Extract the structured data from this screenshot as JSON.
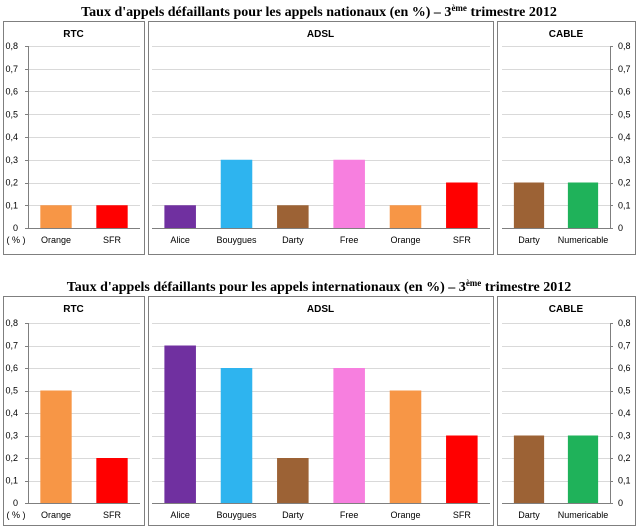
{
  "chart_data": [
    {
      "type": "bar",
      "title": "Taux d'appels défaillants pour les appels nationaux (en %) – 3",
      "title_sup": "ème",
      "title_end": " trimestre 2012",
      "ylabel": "( % )",
      "ylim": [
        0,
        0.8
      ],
      "yticks": [
        "0",
        "0,1",
        "0,2",
        "0,3",
        "0,4",
        "0,5",
        "0,6",
        "0,7",
        "0,8"
      ],
      "grid": true,
      "panels": [
        {
          "name": "RTC",
          "categories": [
            "Orange",
            "SFR"
          ],
          "values": [
            0.1,
            0.1
          ],
          "colors": [
            "#f79646",
            "#ff0000"
          ]
        },
        {
          "name": "ADSL",
          "categories": [
            "Alice",
            "Bouygues",
            "Darty",
            "Free",
            "Orange",
            "SFR"
          ],
          "values": [
            0.1,
            0.3,
            0.1,
            0.3,
            0.1,
            0.2
          ],
          "colors": [
            "#7030a0",
            "#2eb4ef",
            "#9c6235",
            "#f77fdf",
            "#f79646",
            "#ff0000"
          ]
        },
        {
          "name": "CABLE",
          "categories": [
            "Darty",
            "Numericable"
          ],
          "values": [
            0.2,
            0.2
          ],
          "colors": [
            "#9c6235",
            "#1fb25a"
          ]
        }
      ]
    },
    {
      "type": "bar",
      "title": "Taux d'appels défaillants pour les appels internationaux (en %) – 3",
      "title_sup": "ème",
      "title_end": " trimestre 2012",
      "ylabel": "( % )",
      "ylim": [
        0,
        0.8
      ],
      "yticks": [
        "0",
        "0,1",
        "0,2",
        "0,3",
        "0,4",
        "0,5",
        "0,6",
        "0,7",
        "0,8"
      ],
      "grid": true,
      "panels": [
        {
          "name": "RTC",
          "categories": [
            "Orange",
            "SFR"
          ],
          "values": [
            0.5,
            0.2
          ],
          "colors": [
            "#f79646",
            "#ff0000"
          ]
        },
        {
          "name": "ADSL",
          "categories": [
            "Alice",
            "Bouygues",
            "Darty",
            "Free",
            "Orange",
            "SFR"
          ],
          "values": [
            0.7,
            0.6,
            0.2,
            0.6,
            0.5,
            0.3
          ],
          "colors": [
            "#7030a0",
            "#2eb4ef",
            "#9c6235",
            "#f77fdf",
            "#f79646",
            "#ff0000"
          ]
        },
        {
          "name": "CABLE",
          "categories": [
            "Darty",
            "Numericable"
          ],
          "values": [
            0.3,
            0.3
          ],
          "colors": [
            "#9c6235",
            "#1fb25a"
          ]
        }
      ]
    }
  ]
}
